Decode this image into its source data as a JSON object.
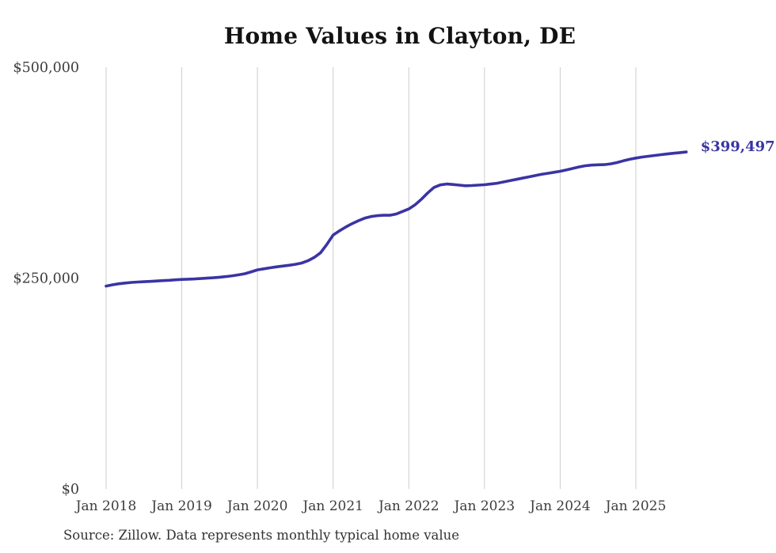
{
  "chart": {
    "title": "Home Values in Clayton, DE",
    "end_label": "$399,497",
    "source_note": "Source: Zillow. Data represents monthly typical home value",
    "colors": {
      "line": "#3a34a3",
      "grid": "#cccccc",
      "axis_text": "#3d3d3d",
      "title_text": "#121212",
      "source_text": "#333333",
      "background": "#ffffff"
    }
  },
  "chart_data": {
    "type": "line",
    "title": "Home Values in Clayton, DE",
    "xlabel": "",
    "ylabel": "",
    "ylim": [
      0,
      500000
    ],
    "grid": "vertical-only",
    "legend": "none",
    "final_value": 399497,
    "final_value_label": "$399,497",
    "y_ticks": [
      {
        "value": 0,
        "label": "$0"
      },
      {
        "value": 250000,
        "label": "$250,000"
      },
      {
        "value": 500000,
        "label": "$500,000"
      }
    ],
    "x_tick_labels": [
      "Jan 2018",
      "Jan 2019",
      "Jan 2020",
      "Jan 2021",
      "Jan 2022",
      "Jan 2023",
      "Jan 2024",
      "Jan 2025"
    ],
    "x": [
      "2018-01",
      "2018-02",
      "2018-03",
      "2018-04",
      "2018-05",
      "2018-06",
      "2018-07",
      "2018-08",
      "2018-09",
      "2018-10",
      "2018-11",
      "2018-12",
      "2019-01",
      "2019-02",
      "2019-03",
      "2019-04",
      "2019-05",
      "2019-06",
      "2019-07",
      "2019-08",
      "2019-09",
      "2019-10",
      "2019-11",
      "2019-12",
      "2020-01",
      "2020-02",
      "2020-03",
      "2020-04",
      "2020-05",
      "2020-06",
      "2020-07",
      "2020-08",
      "2020-09",
      "2020-10",
      "2020-11",
      "2020-12",
      "2021-01",
      "2021-02",
      "2021-03",
      "2021-04",
      "2021-05",
      "2021-06",
      "2021-07",
      "2021-08",
      "2021-09",
      "2021-10",
      "2021-11",
      "2021-12",
      "2022-01",
      "2022-02",
      "2022-03",
      "2022-04",
      "2022-05",
      "2022-06",
      "2022-07",
      "2022-08",
      "2022-09",
      "2022-10",
      "2022-11",
      "2022-12",
      "2023-01",
      "2023-02",
      "2023-03",
      "2023-04",
      "2023-05",
      "2023-06",
      "2023-07",
      "2023-08",
      "2023-09",
      "2023-10",
      "2023-11",
      "2023-12",
      "2024-01",
      "2024-02",
      "2024-03",
      "2024-04",
      "2024-05",
      "2024-06",
      "2024-07",
      "2024-08",
      "2024-09",
      "2024-10",
      "2024-11",
      "2024-12",
      "2025-01",
      "2025-02",
      "2025-03",
      "2025-04",
      "2025-05",
      "2025-06",
      "2025-07",
      "2025-08",
      "2025-09"
    ],
    "values": [
      240500,
      242000,
      243200,
      244100,
      244800,
      245300,
      245700,
      246100,
      246500,
      247000,
      247400,
      247900,
      248400,
      248700,
      249000,
      249400,
      249900,
      250400,
      251000,
      251800,
      252700,
      253800,
      255200,
      257400,
      259800,
      261000,
      262200,
      263300,
      264300,
      265200,
      266300,
      267800,
      270500,
      274500,
      280000,
      290000,
      301000,
      306000,
      310500,
      314500,
      318000,
      321000,
      323000,
      324000,
      324500,
      324500,
      326000,
      329000,
      332000,
      337000,
      343500,
      351000,
      357500,
      360500,
      361500,
      361000,
      360200,
      359500,
      359800,
      360200,
      360700,
      361500,
      362500,
      364000,
      365500,
      367000,
      368500,
      370000,
      371500,
      373000,
      374200,
      375400,
      376600,
      378200,
      380000,
      381800,
      383200,
      384000,
      384300,
      384500,
      385500,
      387000,
      389000,
      390800,
      392300,
      393500,
      394500,
      395400,
      396300,
      397200,
      398000,
      398800,
      399497
    ]
  }
}
